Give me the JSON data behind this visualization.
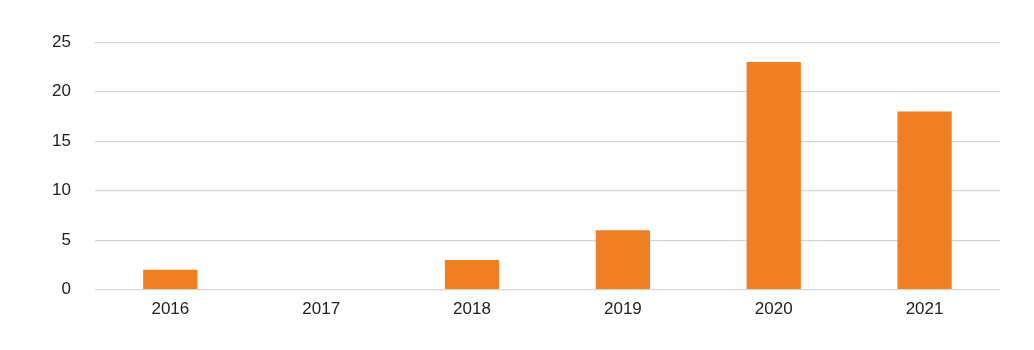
{
  "chart_data": {
    "type": "bar",
    "categories": [
      "2016",
      "2017",
      "2018",
      "2019",
      "2020",
      "2021"
    ],
    "values": [
      2,
      0,
      3,
      6,
      23,
      18
    ],
    "color": "#ee7f22",
    "ylim": [
      0,
      25
    ],
    "yticks": [
      0,
      5,
      10,
      15,
      20,
      25
    ],
    "grid": "y",
    "legend": false
  }
}
